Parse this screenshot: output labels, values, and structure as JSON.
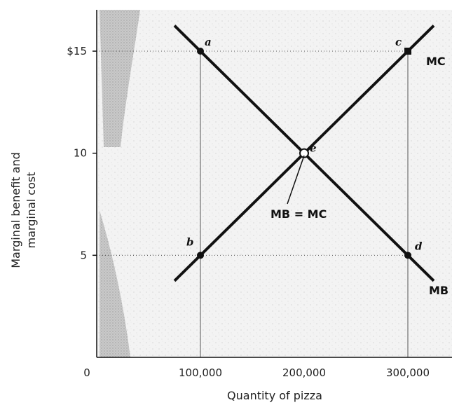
{
  "chart_data": {
    "type": "line",
    "xlabel": "Quantity of pizza",
    "ylabel_lines": [
      "Marginal benefit and",
      "marginal cost"
    ],
    "xlim": [
      0,
      310000
    ],
    "ylim": [
      0,
      17
    ],
    "x_ticks": [
      {
        "value": 0,
        "label": "0"
      },
      {
        "value": 100000,
        "label": "100,000"
      },
      {
        "value": 200000,
        "label": "200,000"
      },
      {
        "value": 300000,
        "label": "300,000"
      }
    ],
    "y_ticks": [
      {
        "value": 5,
        "label": "5"
      },
      {
        "value": 10,
        "label": "10"
      },
      {
        "value": 15,
        "label": "$15"
      }
    ],
    "series": [
      {
        "name": "MC",
        "x": [
          75000,
          325000
        ],
        "y": [
          3.75,
          16.25
        ]
      },
      {
        "name": "MB",
        "x": [
          75000,
          325000
        ],
        "y": [
          16.25,
          3.75
        ]
      }
    ],
    "points": [
      {
        "label": "a",
        "x": 100000,
        "y": 15
      },
      {
        "label": "b",
        "x": 100000,
        "y": 5
      },
      {
        "label": "c",
        "x": 300000,
        "y": 15
      },
      {
        "label": "d",
        "x": 300000,
        "y": 5
      },
      {
        "label": "e",
        "x": 200000,
        "y": 10
      }
    ],
    "annotation": "MB = MC",
    "colors": {
      "line": "#111111",
      "plot_bg": "#f2f2f2",
      "guide": "#555555"
    }
  }
}
